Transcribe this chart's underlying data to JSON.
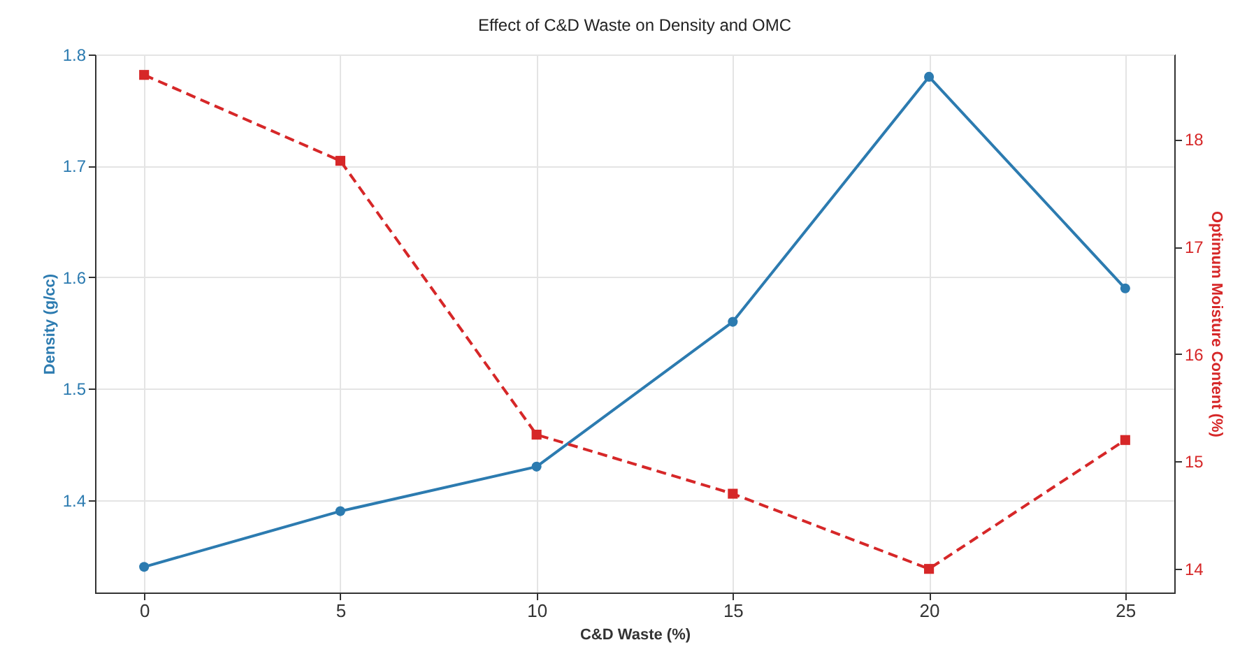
{
  "chart_data": {
    "type": "line",
    "title": "Effect of C&D Waste on Density and OMC",
    "xlabel": "C&D Waste (%)",
    "ylabel": "Density (g/cc)",
    "y2label": "Optimum Moisture Content (%)",
    "x": [
      0,
      5,
      10,
      15,
      20,
      25
    ],
    "series": [
      {
        "name": null,
        "color": "#2c7bb0",
        "values": [
          1.34,
          1.39,
          1.43,
          1.56,
          1.78,
          1.59
        ],
        "marker": "circle",
        "line_style": "solid"
      },
      {
        "name": null,
        "color": "#d62728",
        "values": [
          18.6,
          17.8,
          15.25,
          14.7,
          14.0,
          15.2
        ],
        "marker": "square",
        "line_style": "dashed",
        "axis": "y2"
      }
    ],
    "xlim": [
      -1.25,
      26.25
    ],
    "xticks": [
      0,
      5,
      10,
      15,
      20,
      25
    ],
    "ylim": [
      1.317,
      1.8
    ],
    "yticks": [
      1.4,
      1.5,
      1.6,
      1.7,
      1.8
    ],
    "y2lim": [
      13.78,
      18.79
    ],
    "y2ticks": [
      14,
      15,
      16,
      17,
      18
    ],
    "grid": true
  }
}
